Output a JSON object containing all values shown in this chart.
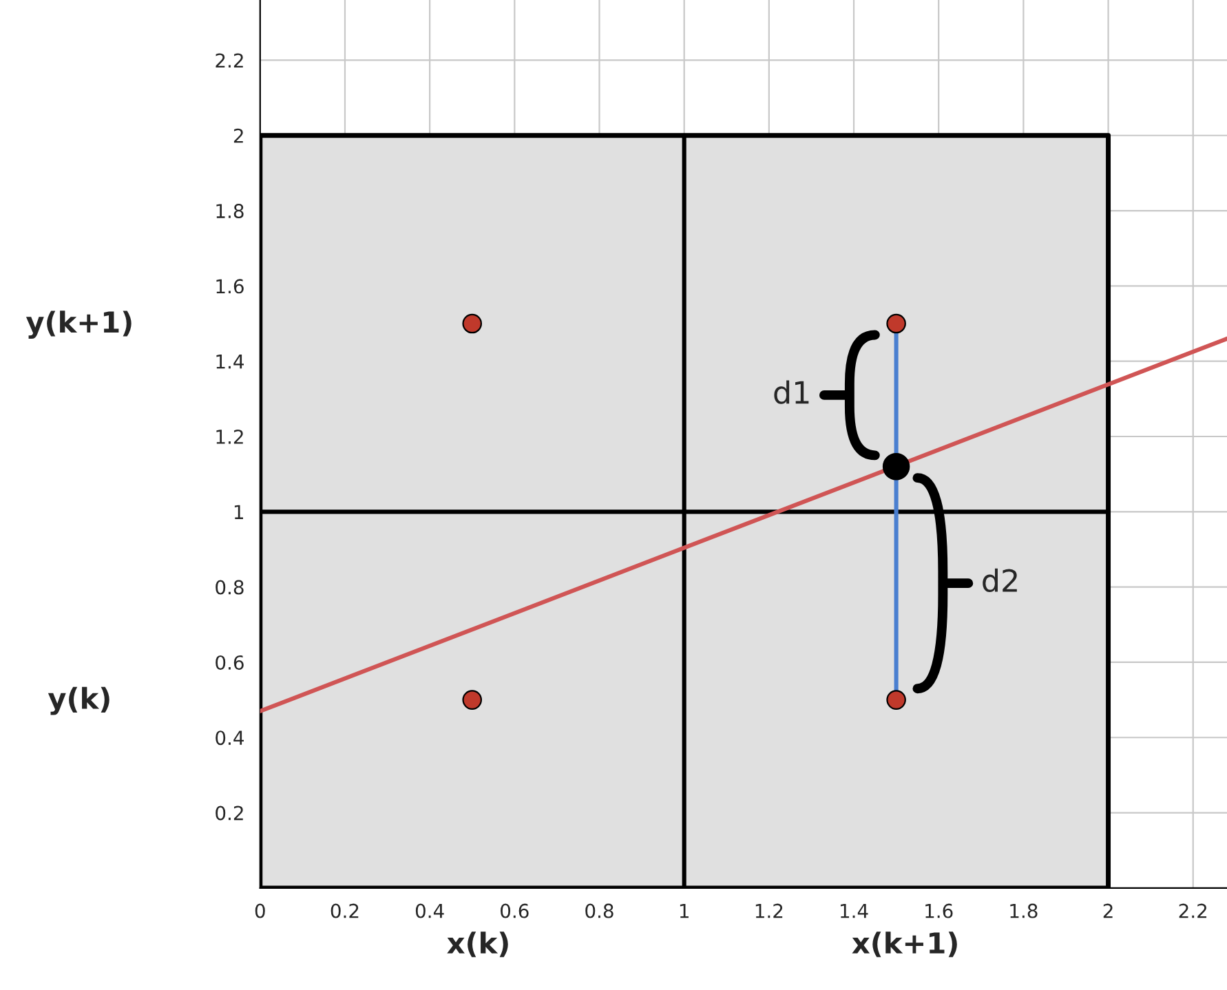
{
  "chart_data": {
    "type": "scatter",
    "xlim": [
      0,
      2.28
    ],
    "ylim": [
      0,
      2.36
    ],
    "xticks": [
      0,
      0.2,
      0.4,
      0.6,
      0.8,
      1,
      1.2,
      1.4,
      1.6,
      1.8,
      2,
      2.2
    ],
    "yticks": [
      0.2,
      0.4,
      0.6,
      0.8,
      1,
      1.2,
      1.4,
      1.6,
      1.8,
      2,
      2.2
    ],
    "grid": true,
    "legend": false,
    "series": [
      {
        "type": "area",
        "color": "#e0e0e0",
        "x": [
          0,
          2
        ],
        "values": [
          2,
          2
        ]
      },
      {
        "type": "line",
        "color": "#000000",
        "x": [
          1,
          1
        ],
        "values": [
          0,
          2
        ]
      },
      {
        "type": "line",
        "color": "#000000",
        "x": [
          0,
          2
        ],
        "values": [
          1,
          1
        ]
      },
      {
        "type": "line",
        "color": "#d05555",
        "x": [
          0,
          2.28
        ],
        "values": [
          0.47,
          1.46
        ]
      },
      {
        "type": "line",
        "color": "#4a7fd0",
        "x": [
          1.5,
          1.5
        ],
        "values": [
          0.5,
          1.5
        ]
      },
      {
        "color": "#c0392b",
        "x": [
          0.5,
          0.5,
          1.5,
          1.5
        ],
        "values": [
          1.5,
          0.5,
          1.5,
          0.5
        ]
      },
      {
        "color": "#000000",
        "x": [
          1.5
        ],
        "values": [
          1.12
        ]
      }
    ],
    "annotations": [
      {
        "text": "d1",
        "x": 1.5,
        "y": 1.31
      },
      {
        "text": "d2",
        "x": 1.5,
        "y": 0.81
      },
      "y(k+1)",
      "y(k)",
      "x(k)",
      "x(k+1)"
    ]
  }
}
